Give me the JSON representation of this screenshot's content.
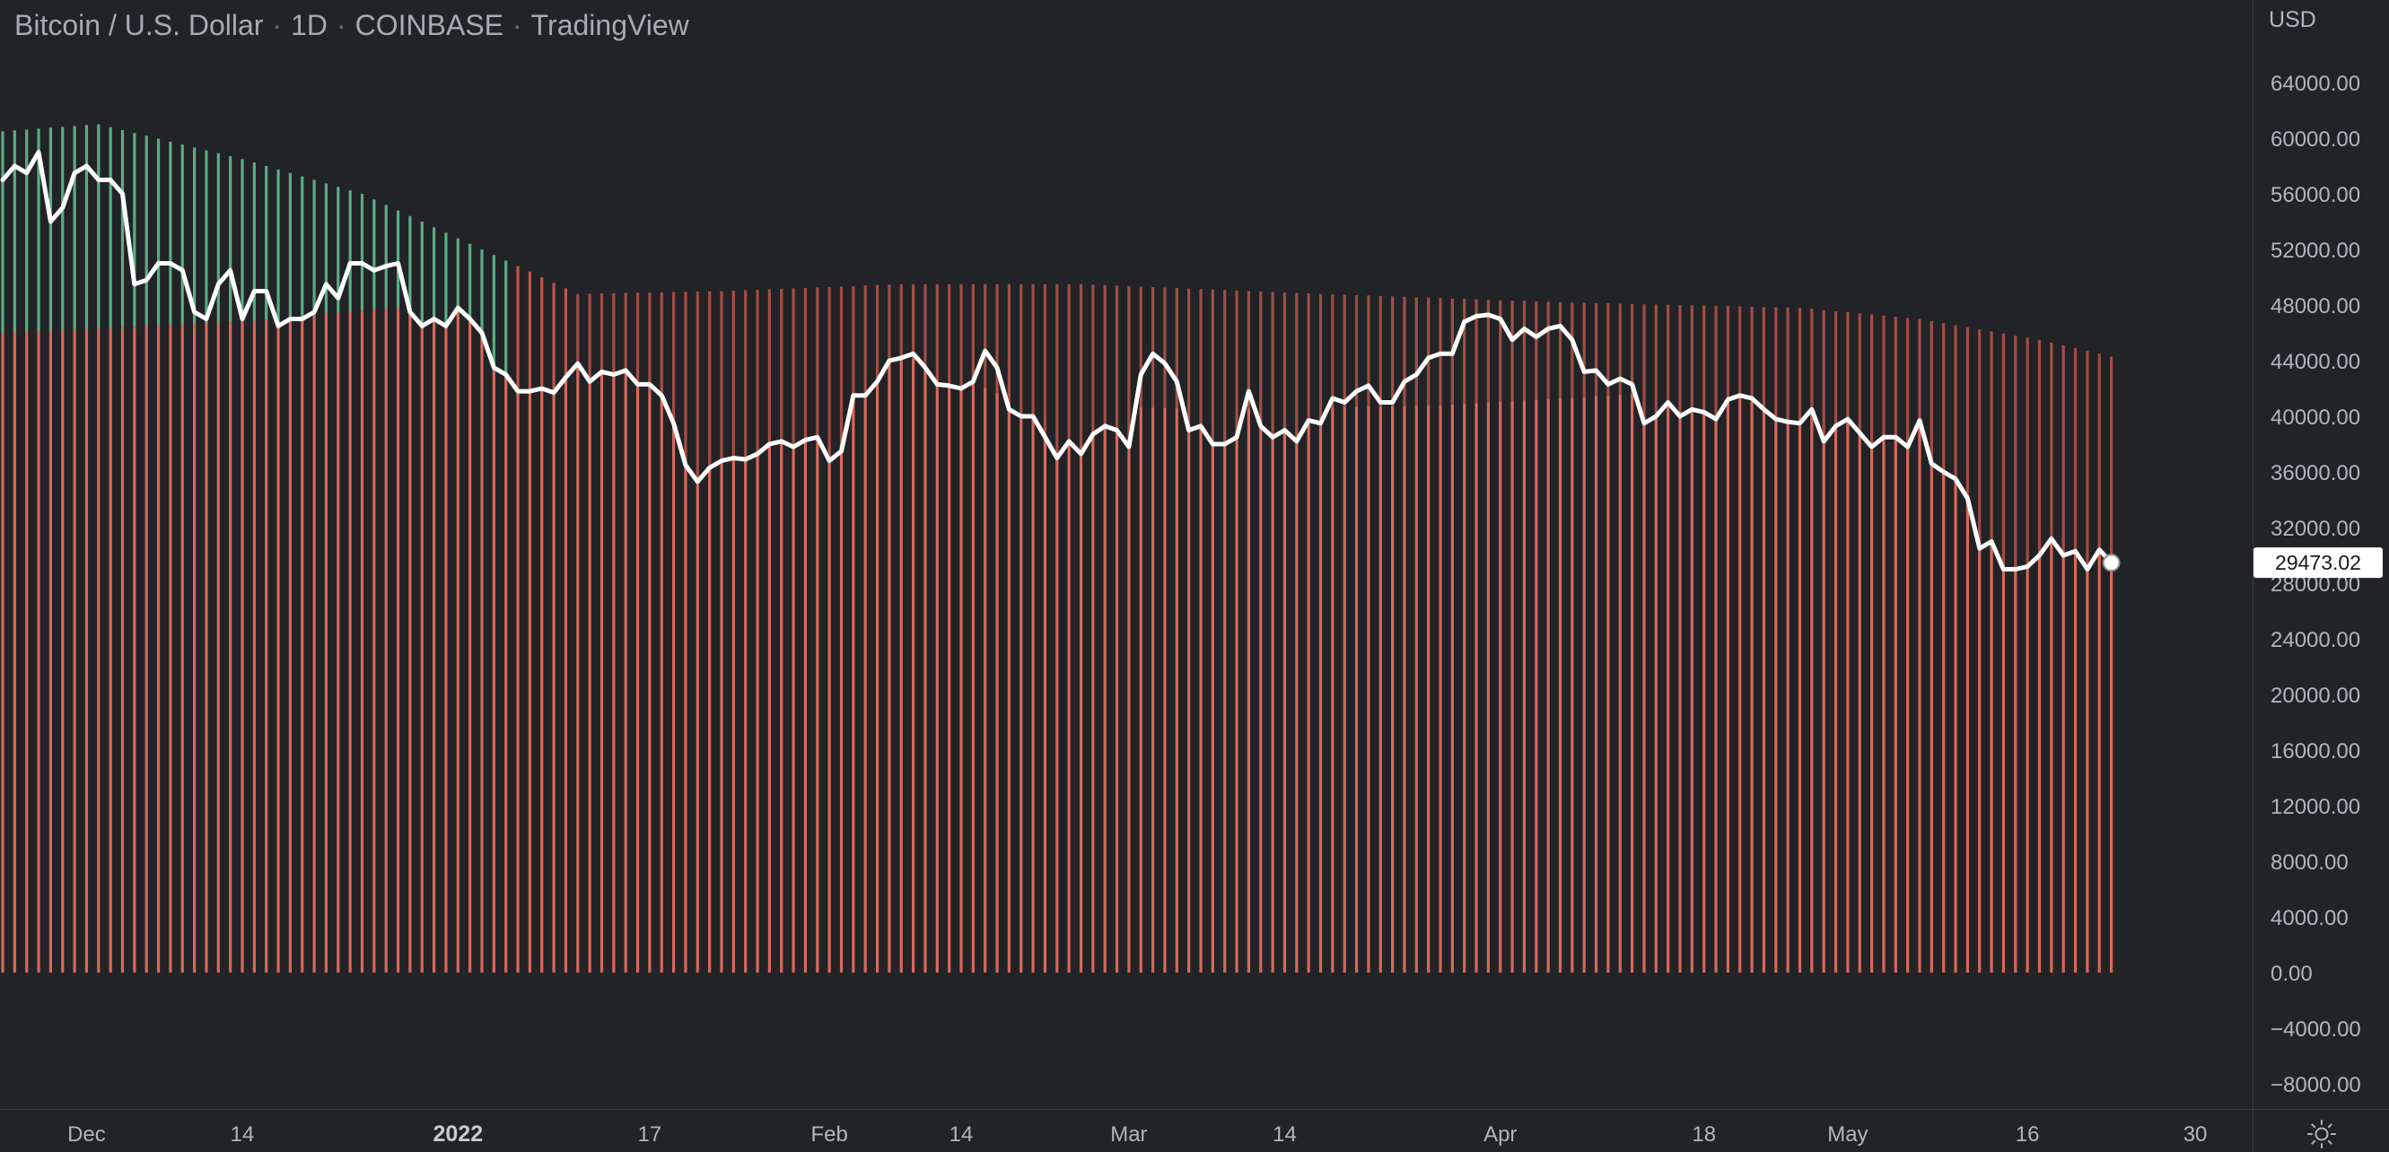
{
  "header": {
    "symbol": "Bitcoin / U.S. Dollar",
    "interval": "1D",
    "exchange": "COINBASE",
    "brand": "TradingView",
    "separator": "·"
  },
  "price_axis": {
    "currency": "USD",
    "last_price_label": "29473.02"
  },
  "icons": {
    "settings": "settings-sun-icon"
  },
  "colors": {
    "background": "#222326",
    "price_line": "#ffffff",
    "column_below": "#d9685a",
    "column_above_green": "#5eb586",
    "column_above_red": "#c65a50",
    "last_price_tag_bg": "#ffffff"
  },
  "chart_data": {
    "type": "line",
    "title": "",
    "xlabel": "",
    "ylabel": "",
    "ylim": [
      -9000,
      66000
    ],
    "y_ticks": [
      -8000,
      -4000,
      0,
      4000,
      8000,
      12000,
      16000,
      20000,
      24000,
      28000,
      32000,
      36000,
      40000,
      44000,
      48000,
      52000,
      56000,
      60000,
      64000
    ],
    "y_tick_labels": [
      "−8000.00",
      "−4000.00",
      "0.00",
      "4000.00",
      "8000.00",
      "12000.00",
      "16000.00",
      "20000.00",
      "24000.00",
      "28000.00",
      "32000.00",
      "36000.00",
      "40000.00",
      "44000.00",
      "48000.00",
      "52000.00",
      "56000.00",
      "60000.00",
      "64000.00"
    ],
    "x_tick_labels": [
      {
        "label": "Dec",
        "day": 7,
        "strong": false
      },
      {
        "label": "14",
        "day": 20,
        "strong": false
      },
      {
        "label": "2022",
        "day": 38,
        "strong": true
      },
      {
        "label": "17",
        "day": 54,
        "strong": false
      },
      {
        "label": "Feb",
        "day": 69,
        "strong": false
      },
      {
        "label": "14",
        "day": 80,
        "strong": false
      },
      {
        "label": "Mar",
        "day": 94,
        "strong": false
      },
      {
        "label": "14",
        "day": 107,
        "strong": false
      },
      {
        "label": "Apr",
        "day": 125,
        "strong": false
      },
      {
        "label": "18",
        "day": 142,
        "strong": false
      },
      {
        "label": "May",
        "day": 154,
        "strong": false
      },
      {
        "label": "16",
        "day": 169,
        "strong": false
      },
      {
        "label": "30",
        "day": 183,
        "strong": false
      }
    ],
    "price_anchors": [
      [
        0,
        57000
      ],
      [
        1,
        58000
      ],
      [
        2,
        57500
      ],
      [
        3,
        59000
      ],
      [
        4,
        54000
      ],
      [
        5,
        55000
      ],
      [
        6,
        57500
      ],
      [
        7,
        58000
      ],
      [
        8,
        57000
      ],
      [
        9,
        57000
      ],
      [
        10,
        56000
      ],
      [
        11,
        49500
      ],
      [
        12,
        49800
      ],
      [
        13,
        51000
      ],
      [
        14,
        51000
      ],
      [
        15,
        50500
      ],
      [
        16,
        47500
      ],
      [
        17,
        47000
      ],
      [
        18,
        49500
      ],
      [
        19,
        50500
      ],
      [
        20,
        47000
      ],
      [
        21,
        49000
      ],
      [
        22,
        49000
      ],
      [
        23,
        46500
      ],
      [
        24,
        47000
      ],
      [
        25,
        47000
      ],
      [
        26,
        47500
      ],
      [
        27,
        49500
      ],
      [
        28,
        48500
      ],
      [
        29,
        51000
      ],
      [
        30,
        51000
      ],
      [
        31,
        50500
      ],
      [
        32,
        50800
      ],
      [
        33,
        51000
      ],
      [
        34,
        47500
      ],
      [
        35,
        46500
      ],
      [
        36,
        47000
      ],
      [
        37,
        46500
      ],
      [
        38,
        47800
      ],
      [
        39,
        47000
      ],
      [
        40,
        46000
      ],
      [
        41,
        43500
      ],
      [
        42,
        43000
      ],
      [
        43,
        41800
      ],
      [
        44,
        41800
      ],
      [
        45,
        42000
      ],
      [
        46,
        41700
      ],
      [
        47,
        42800
      ],
      [
        48,
        43800
      ],
      [
        49,
        42500
      ],
      [
        50,
        43200
      ],
      [
        51,
        43000
      ],
      [
        52,
        43300
      ],
      [
        53,
        42300
      ],
      [
        54,
        42300
      ],
      [
        55,
        41500
      ],
      [
        56,
        39500
      ],
      [
        57,
        36500
      ],
      [
        58,
        35300
      ],
      [
        59,
        36300
      ],
      [
        60,
        36800
      ],
      [
        61,
        37000
      ],
      [
        62,
        36900
      ],
      [
        63,
        37300
      ],
      [
        64,
        38000
      ],
      [
        65,
        38200
      ],
      [
        66,
        37800
      ],
      [
        67,
        38300
      ],
      [
        68,
        38500
      ],
      [
        69,
        36800
      ],
      [
        70,
        37500
      ],
      [
        71,
        41500
      ],
      [
        72,
        41500
      ],
      [
        73,
        42500
      ],
      [
        74,
        44000
      ],
      [
        75,
        44200
      ],
      [
        76,
        44500
      ],
      [
        77,
        43500
      ],
      [
        78,
        42300
      ],
      [
        79,
        42200
      ],
      [
        80,
        42000
      ],
      [
        81,
        42500
      ],
      [
        82,
        44700
      ],
      [
        83,
        43500
      ],
      [
        84,
        40500
      ],
      [
        85,
        40000
      ],
      [
        86,
        40000
      ],
      [
        87,
        38500
      ],
      [
        88,
        37000
      ],
      [
        89,
        38200
      ],
      [
        90,
        37300
      ],
      [
        91,
        38700
      ],
      [
        92,
        39300
      ],
      [
        93,
        39000
      ],
      [
        94,
        37800
      ],
      [
        95,
        43000
      ],
      [
        96,
        44500
      ],
      [
        97,
        43800
      ],
      [
        98,
        42500
      ],
      [
        99,
        39000
      ],
      [
        100,
        39300
      ],
      [
        101,
        38000
      ],
      [
        102,
        38000
      ],
      [
        103,
        38500
      ],
      [
        104,
        41800
      ],
      [
        105,
        39300
      ],
      [
        106,
        38500
      ],
      [
        107,
        39000
      ],
      [
        108,
        38200
      ],
      [
        109,
        39700
      ],
      [
        110,
        39500
      ],
      [
        111,
        41300
      ],
      [
        112,
        41000
      ],
      [
        113,
        41800
      ],
      [
        114,
        42200
      ],
      [
        115,
        41000
      ],
      [
        116,
        41000
      ],
      [
        117,
        42500
      ],
      [
        118,
        43000
      ],
      [
        119,
        44200
      ],
      [
        120,
        44500
      ],
      [
        121,
        44500
      ],
      [
        122,
        46800
      ],
      [
        123,
        47200
      ],
      [
        124,
        47300
      ],
      [
        125,
        47000
      ],
      [
        126,
        45500
      ],
      [
        127,
        46300
      ],
      [
        128,
        45700
      ],
      [
        129,
        46300
      ],
      [
        130,
        46500
      ],
      [
        131,
        45500
      ],
      [
        132,
        43200
      ],
      [
        133,
        43300
      ],
      [
        134,
        42300
      ],
      [
        135,
        42700
      ],
      [
        136,
        42300
      ],
      [
        137,
        39500
      ],
      [
        138,
        40000
      ],
      [
        139,
        41000
      ],
      [
        140,
        40000
      ],
      [
        141,
        40500
      ],
      [
        142,
        40300
      ],
      [
        143,
        39800
      ],
      [
        144,
        41200
      ],
      [
        145,
        41500
      ],
      [
        146,
        41300
      ],
      [
        147,
        40500
      ],
      [
        148,
        39800
      ],
      [
        149,
        39600
      ],
      [
        150,
        39500
      ],
      [
        151,
        40500
      ],
      [
        152,
        38200
      ],
      [
        153,
        39300
      ],
      [
        154,
        39800
      ],
      [
        155,
        38800
      ],
      [
        156,
        37800
      ],
      [
        157,
        38500
      ],
      [
        158,
        38500
      ],
      [
        159,
        37800
      ],
      [
        160,
        39700
      ],
      [
        161,
        36600
      ],
      [
        162,
        36000
      ],
      [
        163,
        35500
      ],
      [
        164,
        34100
      ],
      [
        165,
        30500
      ],
      [
        166,
        31000
      ],
      [
        167,
        29000
      ],
      [
        168,
        29000
      ],
      [
        169,
        29200
      ],
      [
        170,
        30000
      ],
      [
        171,
        31200
      ],
      [
        172,
        30000
      ],
      [
        173,
        30300
      ],
      [
        174,
        29000
      ],
      [
        175,
        30400
      ],
      [
        176,
        29473.02
      ]
    ],
    "upper_band_anchors": [
      [
        0,
        60500
      ],
      [
        8,
        61000
      ],
      [
        20,
        58500
      ],
      [
        30,
        56000
      ],
      [
        40,
        52000
      ],
      [
        48,
        48800
      ],
      [
        60,
        49000
      ],
      [
        75,
        49500
      ],
      [
        90,
        49500
      ],
      [
        110,
        48800
      ],
      [
        130,
        48200
      ],
      [
        150,
        47800
      ],
      [
        160,
        47000
      ],
      [
        170,
        45500
      ],
      [
        176,
        44300
      ]
    ],
    "lower_band_anchors": [
      [
        0,
        46000
      ],
      [
        20,
        46800
      ],
      [
        35,
        48000
      ],
      [
        48,
        48500
      ],
      [
        60,
        47000
      ],
      [
        75,
        44500
      ],
      [
        85,
        41000
      ],
      [
        100,
        40500
      ],
      [
        120,
        40800
      ],
      [
        140,
        41800
      ],
      [
        155,
        41500
      ],
      [
        165,
        40500
      ],
      [
        176,
        38300
      ]
    ]
  }
}
